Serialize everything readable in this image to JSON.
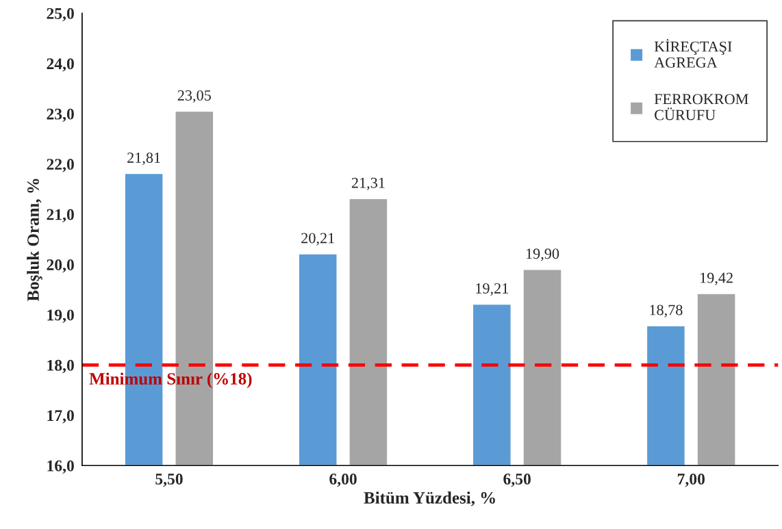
{
  "chart_data": {
    "type": "bar",
    "xlabel": "Bitüm Yüzdesi, %",
    "ylabel": "Boşluk Oranı, %",
    "categories": [
      "5,50",
      "6,00",
      "6,50",
      "7,00"
    ],
    "series": [
      {
        "name": "KİREÇTAŞI\nAGREGA",
        "color": "#5b9bd5",
        "values": [
          21.81,
          20.21,
          19.21,
          18.78
        ],
        "value_labels": [
          "21,81",
          "20,21",
          "19,21",
          "18,78"
        ]
      },
      {
        "name": "FERROKROM\nCÜRUFU",
        "color": "#a5a5a5",
        "values": [
          23.05,
          21.31,
          19.9,
          19.42
        ],
        "value_labels": [
          "23,05",
          "21,31",
          "19,90",
          "19,42"
        ]
      }
    ],
    "ylim": [
      16,
      25
    ],
    "yticks": [
      {
        "value": 16,
        "label": "16,0"
      },
      {
        "value": 17,
        "label": "17,0"
      },
      {
        "value": 18,
        "label": "18,0"
      },
      {
        "value": 19,
        "label": "19,0"
      },
      {
        "value": 20,
        "label": "20,0"
      },
      {
        "value": 21,
        "label": "21,0"
      },
      {
        "value": 22,
        "label": "22,0"
      },
      {
        "value": 23,
        "label": "23,0"
      },
      {
        "value": 24,
        "label": "24,0"
      },
      {
        "value": 25,
        "label": "25,0"
      }
    ],
    "ref_lines": [
      {
        "axis": "y",
        "value": 18,
        "label": "Minimum Sınır (%18)",
        "color": "#ff0000",
        "line_style": "dashed"
      }
    ],
    "grid": false,
    "legend": "top right"
  }
}
